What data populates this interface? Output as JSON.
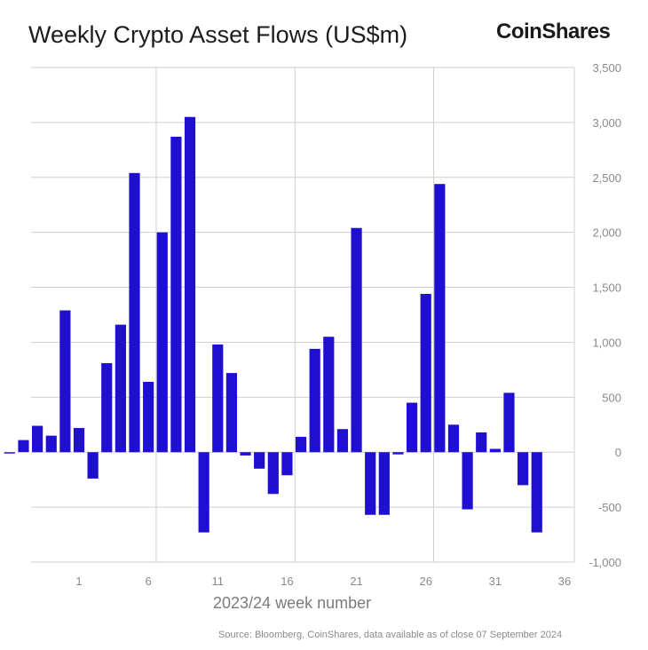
{
  "header": {
    "title": "Weekly Crypto Asset Flows (US$m)",
    "logo_text": "CoinShares"
  },
  "footer": {
    "source": "Source: Bloomberg, CoinShares, data available as of close 07 September 2024"
  },
  "colors": {
    "bar": "#1f0fd0",
    "grid": "#cfcfd6",
    "axis_text": "#8a8a8a"
  },
  "chart_data": {
    "type": "bar",
    "xlabel": "2023/24 week number",
    "ylabel": "",
    "ylim": [
      -1000,
      3500
    ],
    "yticks": [
      -1000,
      -500,
      0,
      500,
      1000,
      1500,
      2000,
      2500,
      3000,
      3500
    ],
    "ytick_labels": [
      "-1,000",
      "-500",
      "0",
      "500",
      "1,000",
      "1,500",
      "2,000",
      "2,500",
      "3,000",
      "3,500"
    ],
    "xtick_labels": [
      "1",
      "6",
      "11",
      "16",
      "21",
      "26",
      "31",
      "36"
    ],
    "xtick_weeks": [
      1,
      6,
      11,
      16,
      21,
      26,
      31,
      36
    ],
    "vertical_grid_weeks": [
      6,
      16,
      26
    ],
    "grid": true,
    "y_axis_side": "right",
    "weeks": [
      -4,
      -3,
      -2,
      -1,
      0,
      1,
      2,
      3,
      4,
      5,
      6,
      7,
      8,
      9,
      10,
      11,
      12,
      13,
      14,
      15,
      16,
      17,
      18,
      19,
      20,
      21,
      22,
      23,
      24,
      25,
      26,
      27,
      28,
      29,
      30,
      31,
      32,
      33,
      34,
      35,
      36
    ],
    "values": [
      -10,
      110,
      240,
      150,
      1290,
      220,
      -240,
      810,
      1160,
      2540,
      640,
      2000,
      2870,
      3050,
      -730,
      980,
      720,
      -30,
      -150,
      -380,
      -210,
      140,
      940,
      1050,
      210,
      2040,
      -570,
      -570,
      -20,
      450,
      1440,
      2440,
      250,
      -520,
      180,
      30,
      540,
      -300,
      -730,
      0,
      0
    ]
  }
}
